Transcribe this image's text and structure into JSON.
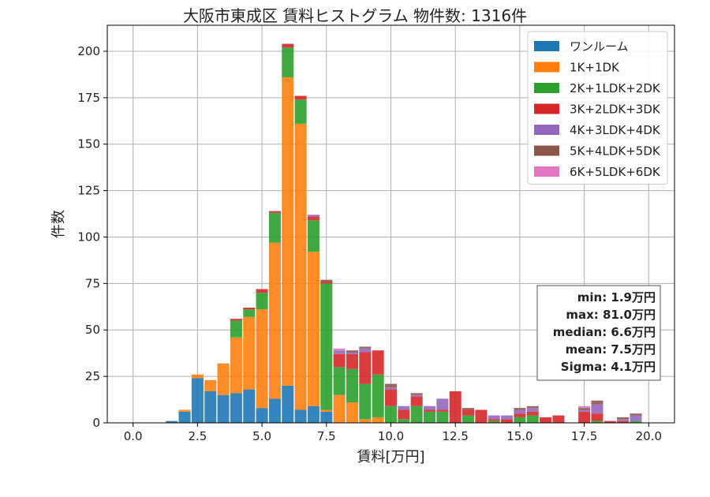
{
  "chart_data": {
    "type": "bar",
    "stacked": true,
    "title": "大阪市東成区 賃料ヒストグラム 物件数: 1316件",
    "xlabel": "賃料[万円]",
    "ylabel": "件数",
    "xlim": [
      -1.0,
      21.0
    ],
    "ylim": [
      0,
      214
    ],
    "xticks": [
      "0.0",
      "2.5",
      "5.0",
      "7.5",
      "10.0",
      "12.5",
      "15.0",
      "17.5",
      "20.0"
    ],
    "xtick_values": [
      0,
      2.5,
      5,
      7.5,
      10,
      12.5,
      15,
      17.5,
      20
    ],
    "yticks": [
      "0",
      "25",
      "50",
      "75",
      "100",
      "125",
      "150",
      "175",
      "200"
    ],
    "ytick_values": [
      0,
      25,
      50,
      75,
      100,
      125,
      150,
      175,
      200
    ],
    "grid": true,
    "legend_position": "top-right",
    "bin_width": 0.5,
    "bins": [
      1.5,
      2.0,
      2.5,
      3.0,
      3.5,
      4.0,
      4.5,
      5.0,
      5.5,
      6.0,
      6.5,
      7.0,
      7.5,
      8.0,
      8.5,
      9.0,
      9.5,
      10.0,
      10.5,
      11.0,
      11.5,
      12.0,
      12.5,
      13.0,
      13.5,
      14.0,
      14.5,
      15.0,
      15.5,
      16.0,
      16.5,
      17.0,
      17.5,
      18.0,
      18.5,
      19.0,
      19.5
    ],
    "series": [
      {
        "name": "ワンルーム",
        "color": "#1f77b4",
        "values": [
          1,
          6,
          24,
          17,
          15,
          16,
          18,
          8,
          13,
          20,
          7,
          9,
          6,
          0,
          0,
          0,
          0,
          0,
          0,
          0,
          0,
          0,
          0,
          0,
          0,
          0,
          0,
          0,
          0,
          0,
          0,
          0,
          0,
          0,
          0,
          0,
          0
        ]
      },
      {
        "name": "1K+1DK",
        "color": "#ff7f0e",
        "values": [
          0,
          1,
          2,
          6,
          17,
          30,
          39,
          53,
          84,
          166,
          154,
          83,
          1,
          15,
          11,
          2,
          3,
          0,
          0,
          0,
          0,
          0,
          0,
          0,
          0,
          0,
          0,
          0,
          0,
          0,
          0,
          0,
          0,
          0,
          0,
          0,
          0
        ]
      },
      {
        "name": "2K+1LDK+2DK",
        "color": "#2ca02c",
        "values": [
          0,
          0,
          0,
          0,
          0,
          9,
          4,
          9,
          16,
          16,
          13,
          17,
          68,
          15,
          18,
          19,
          23,
          9,
          2,
          9,
          6,
          6,
          0,
          4,
          0,
          1,
          0,
          3,
          4,
          0,
          0,
          0,
          0,
          1,
          0,
          0,
          1
        ]
      },
      {
        "name": "3K+2LDK+3DK",
        "color": "#d62728",
        "values": [
          0,
          0,
          0,
          0,
          0,
          1,
          1,
          2,
          1,
          2,
          2,
          2,
          1,
          7,
          8,
          17,
          13,
          9,
          5,
          5,
          1,
          1,
          17,
          3,
          7,
          1,
          2,
          2,
          2,
          3,
          4,
          0,
          6,
          4,
          1,
          1,
          0
        ]
      },
      {
        "name": "4K+3LDK+4DK",
        "color": "#9467bd",
        "values": [
          0,
          0,
          0,
          0,
          0,
          0,
          0,
          0,
          0,
          0,
          0,
          1,
          0,
          2,
          1,
          2,
          0,
          1,
          2,
          1,
          2,
          6,
          0,
          0,
          0,
          2,
          2,
          2,
          2,
          0,
          0,
          0,
          1,
          5,
          0,
          1,
          3
        ]
      },
      {
        "name": "5K+4LDK+5DK",
        "color": "#8c564b",
        "values": [
          0,
          0,
          0,
          0,
          0,
          0,
          0,
          0,
          0,
          0,
          0,
          0,
          1,
          0,
          1,
          1,
          0,
          2,
          0,
          1,
          0,
          0,
          0,
          1,
          0,
          0,
          0,
          1,
          1,
          0,
          0,
          0,
          1,
          2,
          0,
          1,
          1
        ]
      },
      {
        "name": "6K+5LDK+6DK",
        "color": "#e377c2",
        "values": [
          0,
          0,
          0,
          0,
          0,
          0,
          0,
          0,
          0,
          0,
          0,
          0,
          0,
          1,
          0,
          0,
          0,
          0,
          0,
          0,
          0,
          0,
          0,
          0,
          0,
          0,
          0,
          0,
          0,
          0,
          0,
          0,
          1,
          0,
          0,
          0,
          0
        ]
      }
    ],
    "stats": [
      "min: 1.9万円",
      "max: 81.0万円",
      "median: 6.6万円",
      "mean: 7.5万円",
      "Sigma: 4.1万円"
    ]
  }
}
